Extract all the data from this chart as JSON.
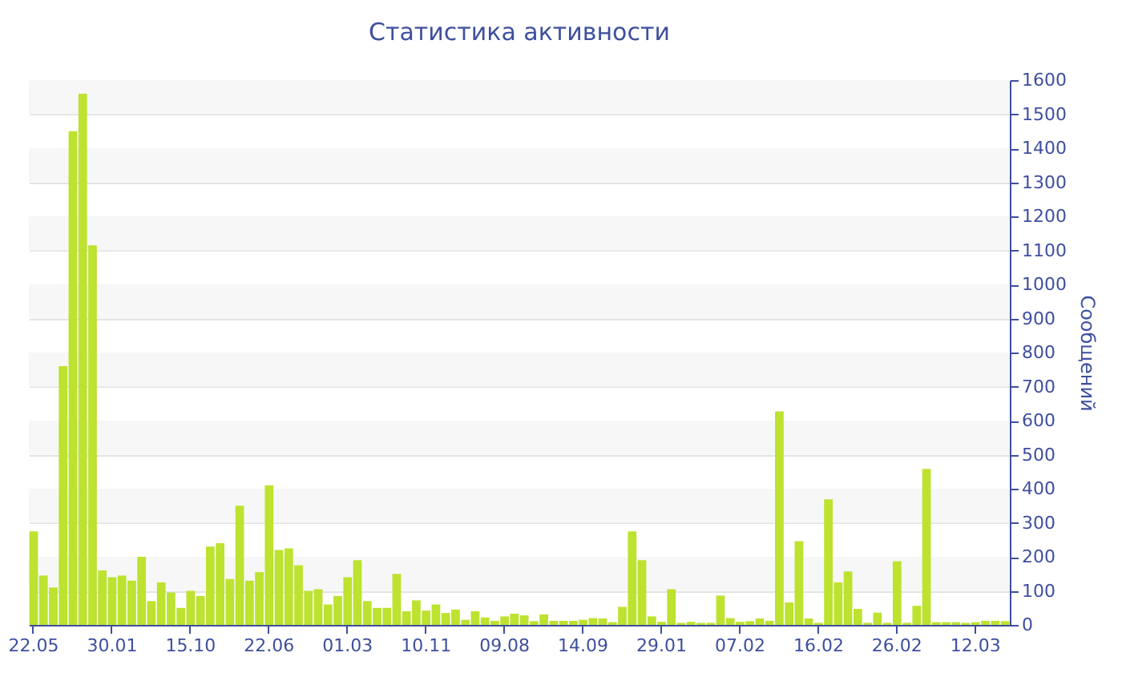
{
  "chart_data": {
    "type": "bar",
    "title": "Статистика активности",
    "ylabel": "Сообщений",
    "categories": [
      "22.05",
      null,
      null,
      null,
      null,
      null,
      null,
      null,
      "30.01",
      null,
      null,
      null,
      null,
      null,
      null,
      null,
      "15.10",
      null,
      null,
      null,
      null,
      null,
      null,
      null,
      "22.06",
      null,
      null,
      null,
      null,
      null,
      null,
      null,
      "01.03",
      null,
      null,
      null,
      null,
      null,
      null,
      null,
      "10.11",
      null,
      null,
      null,
      null,
      null,
      null,
      null,
      "09.08",
      null,
      null,
      null,
      null,
      null,
      null,
      null,
      "14.09",
      null,
      null,
      null,
      null,
      null,
      null,
      null,
      "29.01",
      null,
      null,
      null,
      null,
      null,
      null,
      null,
      "07.02",
      null,
      null,
      null,
      null,
      null,
      null,
      null,
      "16.02",
      null,
      null,
      null,
      null,
      null,
      null,
      null,
      "26.02",
      null,
      null,
      null,
      null,
      null,
      null,
      null,
      "12.03",
      null,
      null,
      null
    ],
    "values": [
      275,
      145,
      110,
      760,
      1450,
      1560,
      1115,
      160,
      140,
      145,
      130,
      200,
      70,
      125,
      95,
      50,
      100,
      85,
      230,
      240,
      135,
      350,
      130,
      155,
      410,
      220,
      225,
      175,
      100,
      105,
      60,
      85,
      140,
      190,
      70,
      50,
      50,
      150,
      40,
      72,
      42,
      60,
      35,
      45,
      15,
      40,
      22,
      12,
      25,
      33,
      28,
      11,
      31,
      12,
      12,
      12,
      15,
      20,
      19,
      8,
      53,
      275,
      190,
      25,
      9,
      105,
      6,
      9,
      6,
      6,
      86,
      20,
      9,
      11,
      19,
      12,
      627,
      66,
      246,
      19,
      6,
      369,
      125,
      157,
      47,
      6,
      36,
      6,
      187,
      6,
      56,
      458,
      8,
      8,
      8,
      6,
      8,
      12,
      12,
      11
    ],
    "color": "#bde22f",
    "ylim": [
      0,
      1600
    ],
    "yticks": [
      0,
      100,
      200,
      300,
      400,
      500,
      600,
      700,
      800,
      900,
      1000,
      1100,
      1200,
      1300,
      1400,
      1500,
      1600
    ],
    "grid": "y"
  }
}
